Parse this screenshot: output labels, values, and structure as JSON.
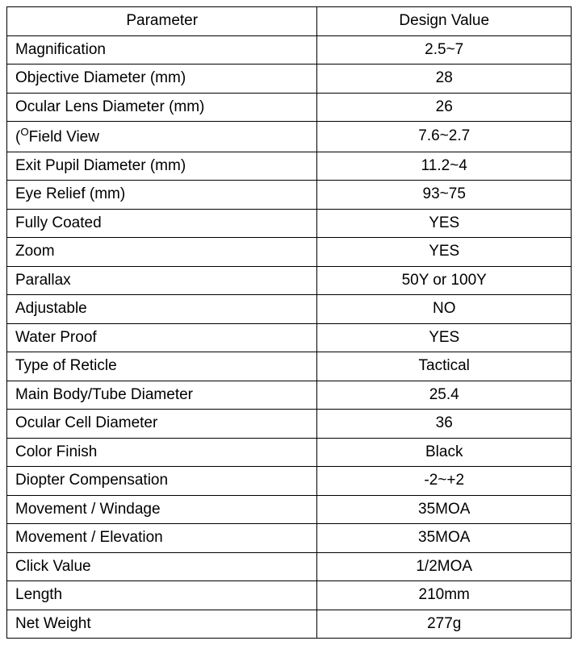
{
  "table": {
    "columns": [
      "Parameter",
      "Design Value"
    ],
    "column_widths": [
      "55%",
      "45%"
    ],
    "column_align": [
      "left",
      "center"
    ],
    "header_align": [
      "center",
      "center"
    ],
    "border_color": "#000000",
    "background_color": "#ffffff",
    "text_color": "#000000",
    "font_size": 19,
    "rows": [
      {
        "param": "Magnification",
        "value": "2.5~7"
      },
      {
        "param": "Objective Diameter (mm)",
        "value": "28"
      },
      {
        "param": "Ocular Lens Diameter (mm)",
        "value": "26"
      },
      {
        "param": "(",
        "param_has_sup": true,
        "param_sup": "O",
        "param_after": "Field View",
        "value": "7.6~2.7"
      },
      {
        "param": "Exit Pupil Diameter (mm)",
        "value": "11.2~4"
      },
      {
        "param": "Eye Relief (mm)",
        "value": "93~75"
      },
      {
        "param": "Fully Coated",
        "value": "YES"
      },
      {
        "param": "Zoom",
        "value": "YES"
      },
      {
        "param": "Parallax",
        "value": "50Y or 100Y"
      },
      {
        "param": "Adjustable",
        "value": "NO"
      },
      {
        "param": "Water Proof",
        "value": "YES"
      },
      {
        "param": "Type of Reticle",
        "value": "Tactical"
      },
      {
        "param": "Main Body/Tube Diameter",
        "value": "25.4"
      },
      {
        "param": "Ocular Cell Diameter",
        "value": "36"
      },
      {
        "param": "Color Finish",
        "value": "Black"
      },
      {
        "param": "Diopter Compensation",
        "value": "-2~+2"
      },
      {
        "param": "Movement / Windage",
        "value": "35MOA"
      },
      {
        "param": "Movement / Elevation",
        "value": "35MOA"
      },
      {
        "param": "Click Value",
        "value": "1/2MOA"
      },
      {
        "param": "Length",
        "value": "210mm"
      },
      {
        "param": "Net Weight",
        "value": "277g"
      }
    ]
  }
}
